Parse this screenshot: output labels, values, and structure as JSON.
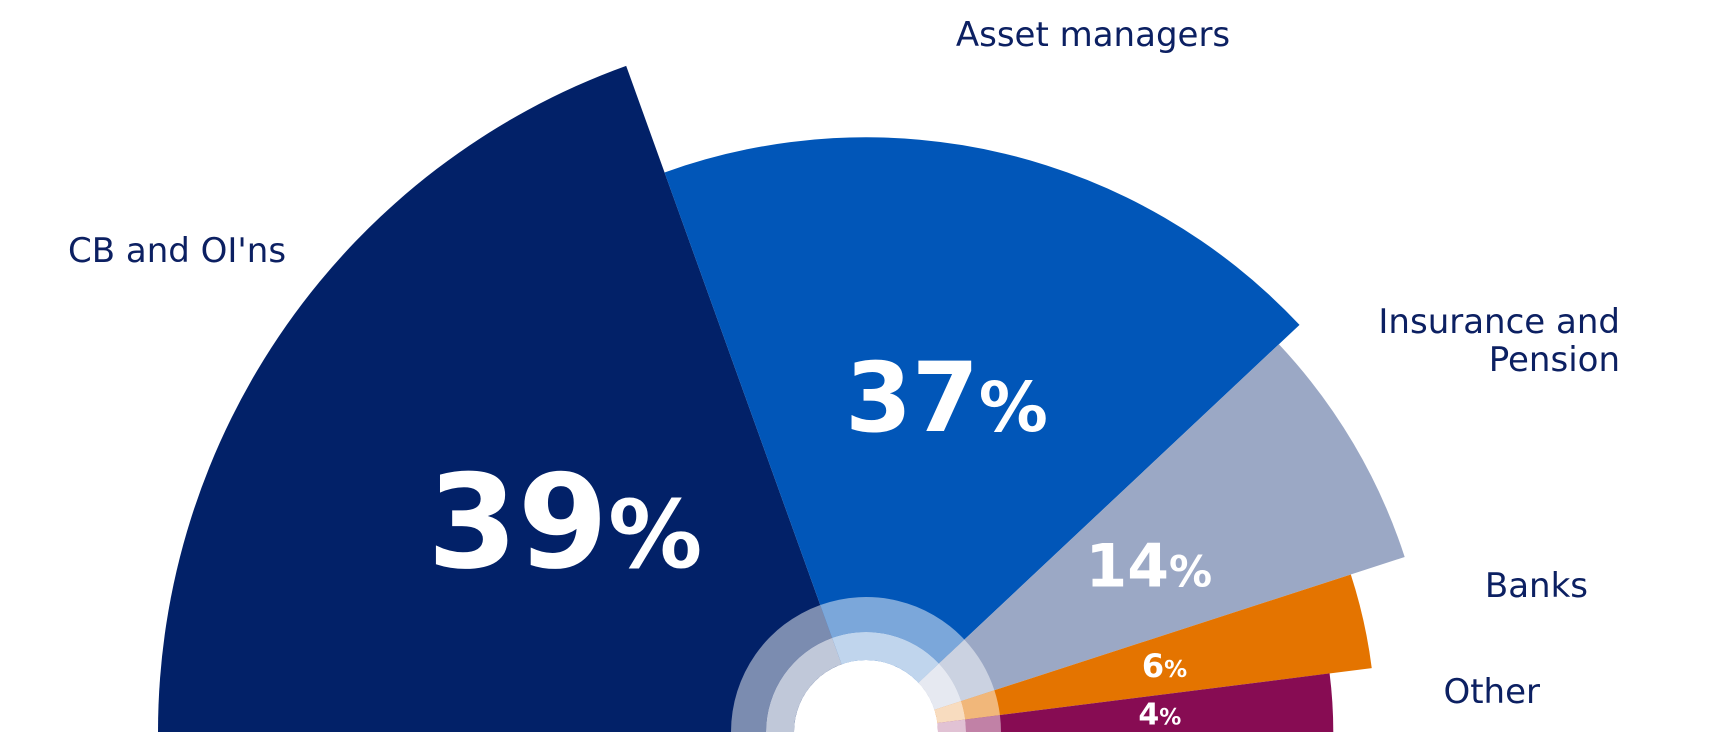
{
  "chart_data": {
    "type": "pie",
    "variant": "semicircle",
    "unit": "%",
    "categories": [
      "CB and OI'ns",
      "Asset managers",
      "Insurance and Pension",
      "Banks",
      "Other"
    ],
    "label_lines": [
      [
        "CB and OI'ns"
      ],
      [
        "Asset managers"
      ],
      [
        "Insurance and",
        "Pension"
      ],
      [
        "Banks"
      ],
      [
        "Other"
      ]
    ],
    "values": [
      39,
      37,
      14,
      6,
      4
    ],
    "value_labels": [
      "39",
      "37",
      "14",
      "6",
      "4"
    ],
    "slice_scale": [
      1.0,
      0.84,
      0.8,
      0.72,
      0.66
    ],
    "colors": [
      "#022168",
      "#0156B8",
      "#9BA8C5",
      "#E47400",
      "#870C53"
    ],
    "label_color": "#0C2062",
    "value_label_color": "#FFFFFF"
  }
}
